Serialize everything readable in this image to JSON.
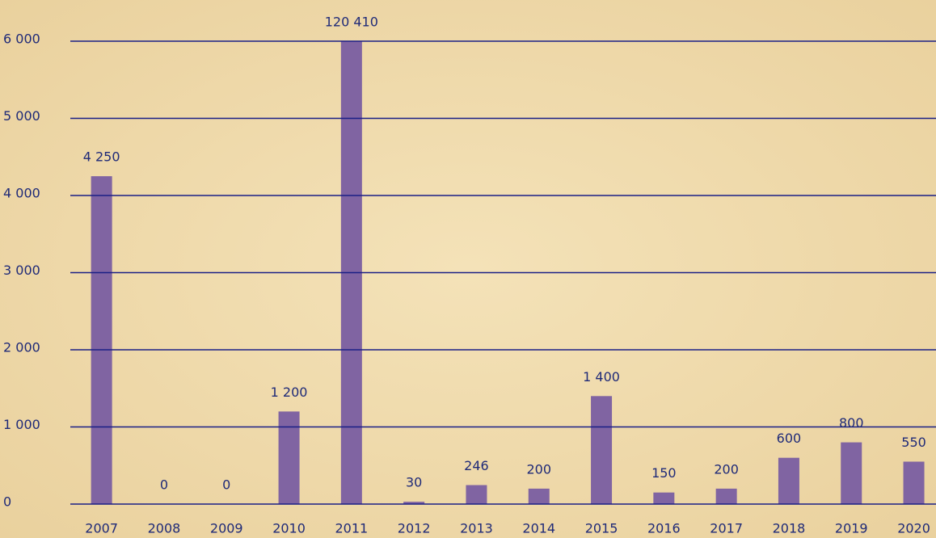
{
  "chart_data": {
    "type": "bar",
    "categories": [
      "2007",
      "2008",
      "2009",
      "2010",
      "2011",
      "2012",
      "2013",
      "2014",
      "2015",
      "2016",
      "2017",
      "2018",
      "2019",
      "2020"
    ],
    "values": [
      4250,
      0,
      0,
      1200,
      120410,
      30,
      246,
      200,
      1400,
      150,
      200,
      600,
      800,
      550
    ],
    "value_labels": [
      "4 250",
      "0",
      "0",
      "1 200",
      "120 410",
      "30",
      "246",
      "200",
      "1 400",
      "150",
      "200",
      "600",
      "800",
      "550"
    ],
    "color": "#8064a2",
    "ylim": [
      0,
      6000
    ],
    "yticks": [
      0,
      {
        "value": 1000,
        "label": "1 000"
      },
      {
        "value": 2000,
        "label": "2 000"
      },
      {
        "value": 3000,
        "label": "3 000"
      },
      {
        "value": 4000,
        "label": "4 000"
      },
      {
        "value": 5000,
        "label": "5 000"
      },
      {
        "value": 6000,
        "label": "6 000"
      }
    ],
    "grid": true
  }
}
